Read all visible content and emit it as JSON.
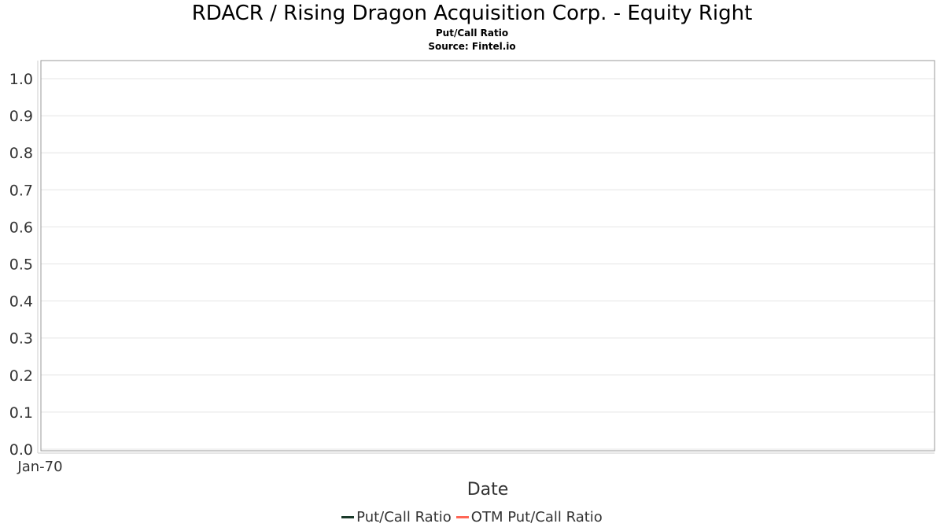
{
  "chart_data": {
    "type": "line",
    "title": "RDACR / Rising Dragon Acquisition Corp. - Equity Right",
    "subtitle": "Put/Call Ratio",
    "source": "Source: Fintel.io",
    "xlabel": "Date",
    "ylabel": "",
    "x_ticks": [
      "Jan-70"
    ],
    "y_ticks": [
      "0.0",
      "0.1",
      "0.2",
      "0.3",
      "0.4",
      "0.5",
      "0.6",
      "0.7",
      "0.8",
      "0.9",
      "1.0"
    ],
    "ylim": [
      0,
      1.05
    ],
    "grid": true,
    "legend_position": "bottom",
    "series": [
      {
        "name": "Put/Call Ratio",
        "color": "#1a3a2a",
        "x": [],
        "values": []
      },
      {
        "name": "OTM Put/Call Ratio",
        "color": "#ff6655",
        "x": [],
        "values": []
      }
    ]
  }
}
